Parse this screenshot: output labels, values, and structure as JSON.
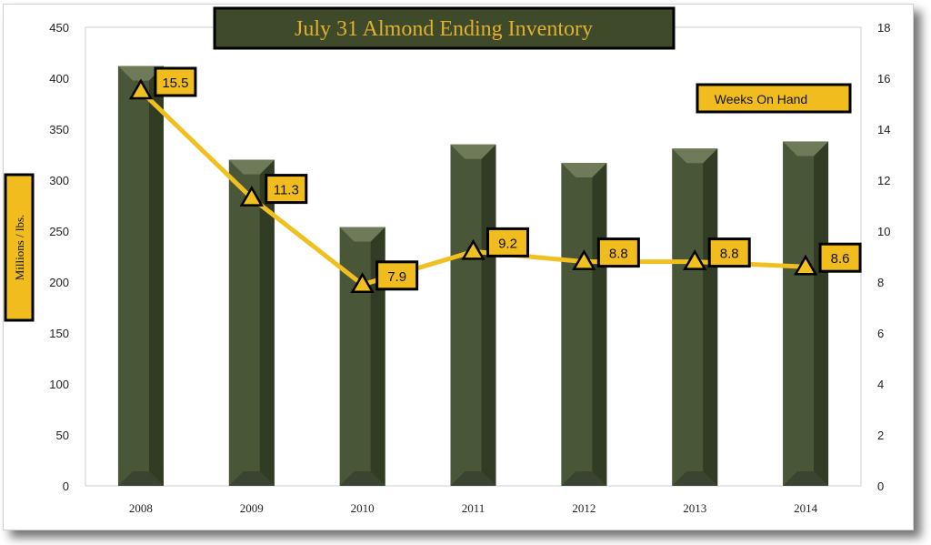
{
  "chart_data": {
    "type": "bar",
    "title": "July 31 Almond Ending Inventory",
    "ylabel": "Millions / lbs.",
    "categories": [
      "2008",
      "2009",
      "2010",
      "2011",
      "2012",
      "2013",
      "2014"
    ],
    "series": [
      {
        "type": "bar",
        "axis": "left",
        "values": [
          412,
          320,
          254,
          335,
          317,
          331,
          338
        ]
      },
      {
        "name": "Weeks On Hand",
        "type": "line",
        "axis": "right",
        "values": [
          15.5,
          11.3,
          7.9,
          9.2,
          8.8,
          8.8,
          8.6
        ],
        "data_labels": [
          "15.5",
          "11.3",
          "7.9",
          "9.2",
          "8.8",
          "8.8",
          "8.6"
        ]
      }
    ],
    "ylim": [
      0,
      450
    ],
    "yticks": [
      "0",
      "50",
      "100",
      "150",
      "200",
      "250",
      "300",
      "350",
      "400",
      "450"
    ],
    "y2lim": [
      0,
      18
    ],
    "y2ticks": [
      "0",
      "2",
      "4",
      "6",
      "8",
      "10",
      "12",
      "14",
      "16",
      "18"
    ],
    "legend_position": "top-right",
    "grid": false,
    "colors": {
      "bar": "#4a5638",
      "bar_dark": "#323c24",
      "bar_cap": "#6e7a58",
      "line": "#f0c020",
      "label_box": "#f0bc1e",
      "title_bg": "#3e4a2a",
      "title_text": "#e0b030"
    }
  }
}
